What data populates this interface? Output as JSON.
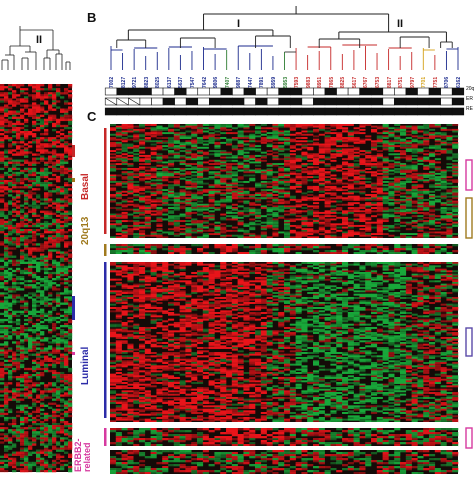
{
  "panels": {
    "a": {
      "cluster_label": "II"
    },
    "b": {
      "letter": "B",
      "cluster_labels": [
        "I",
        "II"
      ]
    },
    "c": {
      "letter": "C"
    }
  },
  "sample_ids": [
    "7002",
    "8127",
    "9721",
    "8823",
    "8025",
    "6137",
    "5637",
    "7547",
    "7642",
    "9806",
    "7407",
    "9887",
    "7447",
    "7891",
    "5959",
    "5953",
    "7593",
    "9883",
    "8951",
    "7865",
    "8825",
    "5617",
    "6767",
    "6753",
    "8817",
    "8751",
    "9797",
    "7701",
    "7751",
    "8706",
    "6162"
  ],
  "sample_id_colors": [
    "#1b2a8c",
    "#1b2a8c",
    "#1b2a8c",
    "#1b2a8c",
    "#1b2a8c",
    "#1b2a8c",
    "#1b2a8c",
    "#1b2a8c",
    "#1b2a8c",
    "#1b2a8c",
    "#2e7d32",
    "#1b2a8c",
    "#1b2a8c",
    "#1b2a8c",
    "#1b2a8c",
    "#2e7d32",
    "#c62828",
    "#c62828",
    "#c62828",
    "#c62828",
    "#c62828",
    "#c62828",
    "#c62828",
    "#c62828",
    "#c62828",
    "#c62828",
    "#c62828",
    "#d4a017",
    "#c62828",
    "#1b2a8c",
    "#1b2a8c"
  ],
  "track_labels": [
    "20q",
    "ER",
    "RE"
  ],
  "clusters": [
    {
      "name": "Basal",
      "color": "#c62828"
    },
    {
      "name": "20q13",
      "color": "#a07a1e"
    },
    {
      "name": "Luminal",
      "color": "#2c2ca8"
    },
    {
      "name": "ERBB2-\nrelated",
      "color": "#d63aa0"
    }
  ],
  "colors": {
    "red": "#e8141a",
    "green": "#18a83a",
    "black": "#140b08"
  }
}
